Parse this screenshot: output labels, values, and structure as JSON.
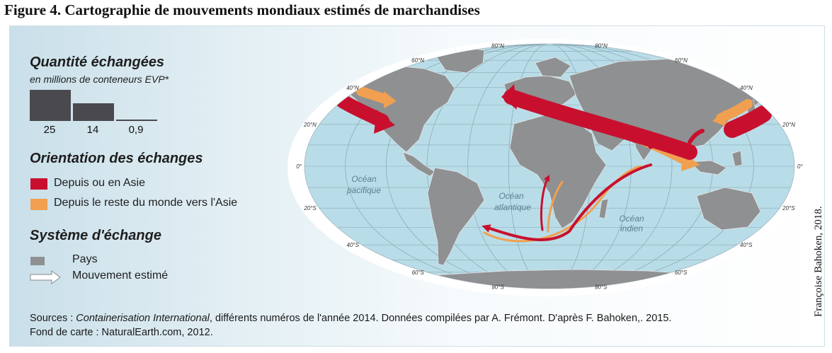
{
  "figure_title": "Figure 4. Cartographie de mouvements mondiaux estimés de marchandises",
  "legend": {
    "quantity": {
      "title": "Quantité échangées",
      "subtitle": "en millions de conteneurs EVP*",
      "values": [
        25,
        14,
        0.9
      ],
      "labels": [
        "25",
        "14",
        "0,9"
      ]
    },
    "orientation": {
      "title": "Orientation des échanges",
      "items": [
        {
          "label": "Depuis ou en Asie",
          "color": "#c8102e"
        },
        {
          "label": "Depuis le reste du monde vers l'Asie",
          "color": "#f0a050"
        }
      ]
    },
    "system": {
      "title": "Système d'échange",
      "items": [
        {
          "label": "Pays",
          "symbol": "grey-rectangle"
        },
        {
          "label": "Mouvement estimé",
          "symbol": "white-arrow"
        }
      ]
    }
  },
  "map": {
    "projection": "Mollweide",
    "land_color": "#8f9092",
    "ocean_color": "#b9dde8",
    "latitude_labels": [
      "80°N",
      "60°N",
      "40°N",
      "20°N",
      "0°",
      "20°S",
      "40°S",
      "60°S",
      "80°S"
    ],
    "oceans": {
      "pacific": "Océan pacifique",
      "atlantic": "Océan atlantique",
      "indian": "Océan indien"
    }
  },
  "sources_line1_prefix": "Sources : ",
  "sources_publication": "Containerisation International",
  "sources_line1_rest": ", différents numéros de l'année 2014. Données compilées par A. Frémont. D'après F. Bahoken,. 2015.",
  "sources_line2": "Fond de carte : NaturalEarth.com, 2012.",
  "credit": "Françoise Bahoken, 2018."
}
